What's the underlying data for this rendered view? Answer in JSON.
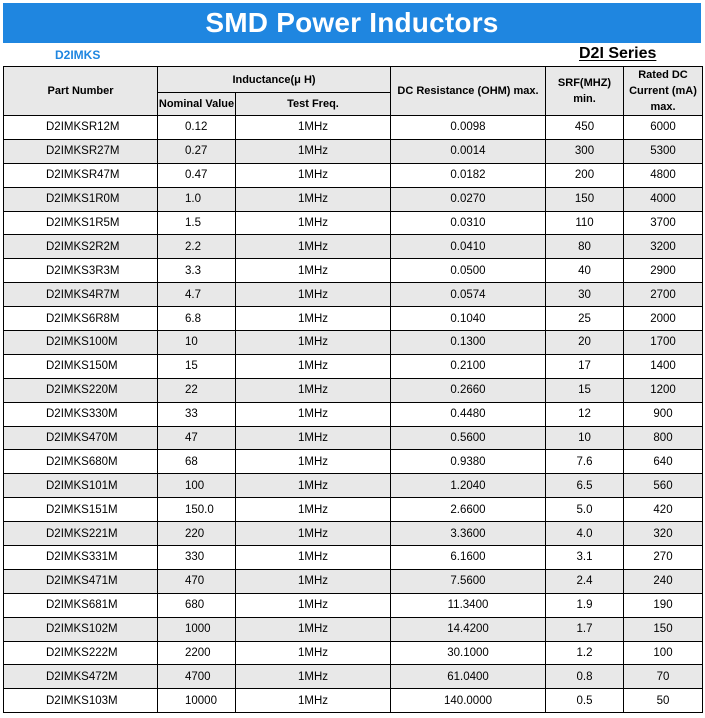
{
  "header": {
    "title": "SMD Power Inductors",
    "series_code": "D2IMKS",
    "series_name": "D2I Series"
  },
  "table": {
    "columns": {
      "part_number": "Part Number",
      "inductance_group": "Inductance(μ H)",
      "nominal_value": "Nominal Value",
      "test_freq": "Test Freq.",
      "dc_resistance": "DC Resistance (OHM) max.",
      "srf": "SRF(MHZ) min.",
      "rated_dc_current": "Rated DC Current (mA) max."
    },
    "rows": [
      {
        "part": "D2IMKSR12M",
        "nominal": "0.12",
        "freq": "1MHz",
        "dcr": "0.0098",
        "srf": "450",
        "current": "6000"
      },
      {
        "part": "D2IMKSR27M",
        "nominal": "0.27",
        "freq": "1MHz",
        "dcr": "0.0014",
        "srf": "300",
        "current": "5300"
      },
      {
        "part": "D2IMKSR47M",
        "nominal": "0.47",
        "freq": "1MHz",
        "dcr": "0.0182",
        "srf": "200",
        "current": "4800"
      },
      {
        "part": "D2IMKS1R0M",
        "nominal": "1.0",
        "freq": "1MHz",
        "dcr": "0.0270",
        "srf": "150",
        "current": "4000"
      },
      {
        "part": "D2IMKS1R5M",
        "nominal": "1.5",
        "freq": "1MHz",
        "dcr": "0.0310",
        "srf": "110",
        "current": "3700"
      },
      {
        "part": "D2IMKS2R2M",
        "nominal": "2.2",
        "freq": "1MHz",
        "dcr": "0.0410",
        "srf": "80",
        "current": "3200"
      },
      {
        "part": "D2IMKS3R3M",
        "nominal": "3.3",
        "freq": "1MHz",
        "dcr": "0.0500",
        "srf": "40",
        "current": "2900"
      },
      {
        "part": "D2IMKS4R7M",
        "nominal": "4.7",
        "freq": "1MHz",
        "dcr": "0.0574",
        "srf": "30",
        "current": "2700"
      },
      {
        "part": "D2IMKS6R8M",
        "nominal": "6.8",
        "freq": "1MHz",
        "dcr": "0.1040",
        "srf": "25",
        "current": "2000"
      },
      {
        "part": "D2IMKS100M",
        "nominal": "10",
        "freq": "1MHz",
        "dcr": "0.1300",
        "srf": "20",
        "current": "1700"
      },
      {
        "part": "D2IMKS150M",
        "nominal": "15",
        "freq": "1MHz",
        "dcr": "0.2100",
        "srf": "17",
        "current": "1400"
      },
      {
        "part": "D2IMKS220M",
        "nominal": "22",
        "freq": "1MHz",
        "dcr": "0.2660",
        "srf": "15",
        "current": "1200"
      },
      {
        "part": "D2IMKS330M",
        "nominal": "33",
        "freq": "1MHz",
        "dcr": "0.4480",
        "srf": "12",
        "current": "900"
      },
      {
        "part": "D2IMKS470M",
        "nominal": "47",
        "freq": "1MHz",
        "dcr": "0.5600",
        "srf": "10",
        "current": "800"
      },
      {
        "part": "D2IMKS680M",
        "nominal": "68",
        "freq": "1MHz",
        "dcr": "0.9380",
        "srf": "7.6",
        "current": "640"
      },
      {
        "part": "D2IMKS101M",
        "nominal": "100",
        "freq": "1MHz",
        "dcr": "1.2040",
        "srf": "6.5",
        "current": "560"
      },
      {
        "part": "D2IMKS151M",
        "nominal": "150.0",
        "freq": "1MHz",
        "dcr": "2.6600",
        "srf": "5.0",
        "current": "420"
      },
      {
        "part": "D2IMKS221M",
        "nominal": "220",
        "freq": "1MHz",
        "dcr": "3.3600",
        "srf": "4.0",
        "current": "320"
      },
      {
        "part": "D2IMKS331M",
        "nominal": "330",
        "freq": "1MHz",
        "dcr": "6.1600",
        "srf": "3.1",
        "current": "270"
      },
      {
        "part": "D2IMKS471M",
        "nominal": "470",
        "freq": "1MHz",
        "dcr": "7.5600",
        "srf": "2.4",
        "current": "240"
      },
      {
        "part": "D2IMKS681M",
        "nominal": "680",
        "freq": "1MHz",
        "dcr": "11.3400",
        "srf": "1.9",
        "current": "190"
      },
      {
        "part": "D2IMKS102M",
        "nominal": "1000",
        "freq": "1MHz",
        "dcr": "14.4200",
        "srf": "1.7",
        "current": "150"
      },
      {
        "part": "D2IMKS222M",
        "nominal": "2200",
        "freq": "1MHz",
        "dcr": "30.1000",
        "srf": "1.2",
        "current": "100"
      },
      {
        "part": "D2IMKS472M",
        "nominal": "4700",
        "freq": "1MHz",
        "dcr": "61.0400",
        "srf": "0.8",
        "current": "70"
      },
      {
        "part": "D2IMKS103M",
        "nominal": "10000",
        "freq": "1MHz",
        "dcr": "140.0000",
        "srf": "0.5",
        "current": "50"
      }
    ]
  },
  "colors": {
    "banner": "#1f86e0",
    "header_fill": "#e8e8e8",
    "stripe": "#e8e8e8"
  }
}
